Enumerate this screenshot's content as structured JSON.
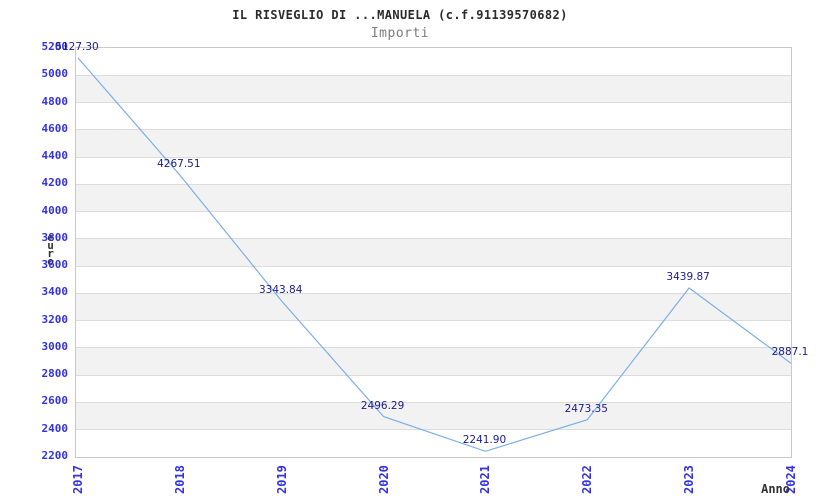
{
  "header": {
    "title": "IL RISVEGLIO DI ...MANUELA (c.f.91139570682)",
    "subtitle": "Importi"
  },
  "chart_data": {
    "type": "line",
    "title": "IL RISVEGLIO DI ...MANUELA (c.f.91139570682)",
    "subtitle": "Importi",
    "xlabel": "Anno",
    "ylabel": "euro",
    "x": [
      "2017",
      "2018",
      "2019",
      "2020",
      "2021",
      "2022",
      "2023",
      "2024"
    ],
    "series": [
      {
        "name": "Importi",
        "values": [
          5127.3,
          4267.51,
          3343.84,
          2496.29,
          2241.9,
          2473.35,
          3439.87,
          2887.1
        ]
      }
    ],
    "point_labels": [
      "5127.30",
      "4267.51",
      "3343.84",
      "2496.29",
      "2241.90",
      "2473.35",
      "3439.87",
      "2887.1"
    ],
    "ylim": [
      2200,
      5200
    ],
    "yticks": [
      5200,
      5000,
      4800,
      4600,
      4400,
      4200,
      4000,
      3800,
      3600,
      3400,
      3200,
      3000,
      2800,
      2600,
      2400,
      2200
    ],
    "grid": true,
    "banded_rows": true,
    "legend": "none"
  },
  "colors": {
    "background": "#ffffff",
    "title": "#2b2b2b",
    "subtitle": "#7d7d7d",
    "tick_label": "#3333e0",
    "point_label": "#1b1b8e",
    "line": "#7dafe8",
    "band": "#f2f2f2",
    "gridline": "#dcdcdc",
    "border": "#c9c9c9",
    "axis_title": "#333333"
  }
}
